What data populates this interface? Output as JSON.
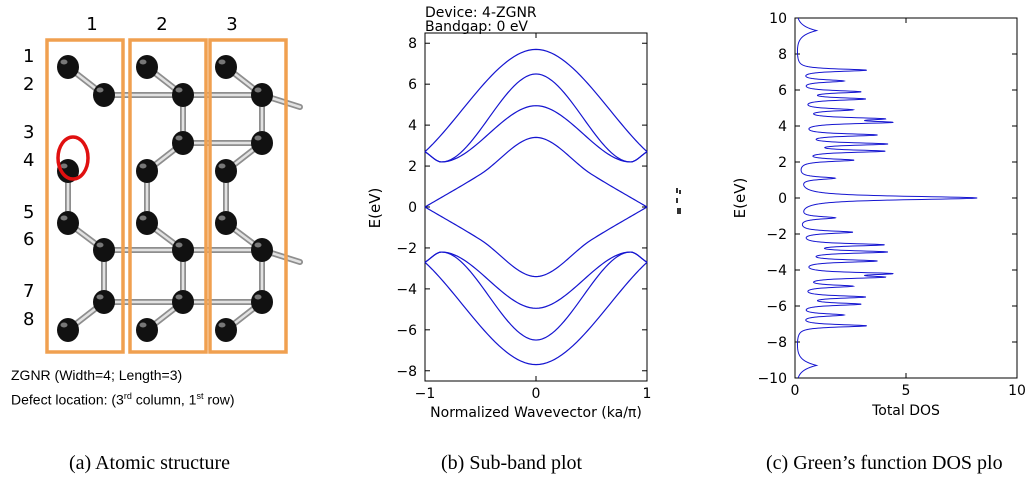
{
  "structure": {
    "column_labels": [
      "1",
      "2",
      "3"
    ],
    "row_labels": [
      "1",
      "2",
      "3",
      "4",
      "5",
      "6",
      "7",
      "8"
    ],
    "note": "ZGNR (Width=4; Length=3)",
    "defect_prefix": "Defect location: (3",
    "defect_col_sup": "rd",
    "defect_mid": " column, 1",
    "defect_row_sup": "st",
    "defect_suffix": " row)",
    "colors": {
      "box": "#f0a050",
      "atom": "#111111",
      "defect": "#e01010"
    }
  },
  "captions": {
    "a": "(a) Atomic structure",
    "b": "(b) Sub-band plot",
    "c": "(c) Green’s function DOS plo"
  },
  "chart_data": [
    {
      "type": "line",
      "title": "Device: 4-ZGNR",
      "subtitle": "Bandgap: 0 eV",
      "xlabel": "Normalized Wavevector (ka/π)",
      "ylabel": "E(eV)",
      "xlim": [
        -1,
        1
      ],
      "ylim": [
        -8.5,
        8.5
      ],
      "xticks": [
        -1,
        0,
        1
      ],
      "yticks": [
        -8,
        -6,
        -4,
        -2,
        0,
        2,
        4,
        6,
        8
      ],
      "grid": false,
      "line_color": "#1515d0",
      "series": [
        {
          "x": [
            -1,
            0,
            1
          ],
          "values": [
            2.7,
            7.7,
            2.7
          ]
        },
        {
          "x": [
            -1,
            -0.85,
            0,
            0.85,
            1
          ],
          "values": [
            2.7,
            2.2,
            6.5,
            2.2,
            2.7
          ]
        },
        {
          "x": [
            -1,
            -0.85,
            0,
            0.85,
            1
          ],
          "values": [
            2.7,
            2.2,
            4.95,
            2.2,
            2.7
          ]
        },
        {
          "x": [
            -1,
            -0.5,
            0,
            0.5,
            1
          ],
          "values": [
            0,
            1.6,
            3.4,
            1.6,
            0
          ]
        },
        {
          "x": [
            -1,
            -0.5,
            0,
            0.5,
            1
          ],
          "values": [
            0,
            -1.6,
            -3.4,
            -1.6,
            0
          ]
        },
        {
          "x": [
            -1,
            -0.85,
            0,
            0.85,
            1
          ],
          "values": [
            -2.7,
            -2.2,
            -4.95,
            -2.2,
            -2.7
          ]
        },
        {
          "x": [
            -1,
            -0.85,
            0,
            0.85,
            1
          ],
          "values": [
            -2.7,
            -2.2,
            -6.5,
            -2.2,
            -2.7
          ]
        },
        {
          "x": [
            -1,
            0,
            1
          ],
          "values": [
            -2.7,
            -7.7,
            -2.7
          ]
        }
      ]
    },
    {
      "type": "line",
      "xlabel": "Total DOS",
      "ylabel": "E(eV)",
      "xlim": [
        0,
        10
      ],
      "ylim": [
        -10,
        10
      ],
      "xticks": [
        0,
        5,
        10
      ],
      "yticks": [
        -10,
        -8,
        -6,
        -4,
        -2,
        0,
        2,
        4,
        6,
        8,
        10
      ],
      "grid": false,
      "line_color": "#1515d0",
      "peaks": [
        {
          "energy": 7.1,
          "dos": 3.1
        },
        {
          "energy": 6.5,
          "dos": 2.0
        },
        {
          "energy": 5.9,
          "dos": 2.7
        },
        {
          "energy": 5.5,
          "dos": 2.9
        },
        {
          "energy": 4.9,
          "dos": 2.3
        },
        {
          "energy": 4.4,
          "dos": 3.3
        },
        {
          "energy": 4.2,
          "dos": 3.7
        },
        {
          "energy": 3.5,
          "dos": 3.4
        },
        {
          "energy": 3.0,
          "dos": 3.8
        },
        {
          "energy": 2.6,
          "dos": 3.7
        },
        {
          "energy": 2.1,
          "dos": 2.4
        },
        {
          "energy": 1.1,
          "dos": 1.6
        },
        {
          "energy": 0.0,
          "dos": 8.1
        },
        {
          "energy": -1.1,
          "dos": 1.6
        },
        {
          "energy": -1.9,
          "dos": 2.4
        },
        {
          "energy": -2.6,
          "dos": 3.7
        },
        {
          "energy": -3.0,
          "dos": 3.8
        },
        {
          "energy": -3.5,
          "dos": 3.4
        },
        {
          "energy": -4.2,
          "dos": 3.7
        },
        {
          "energy": -4.4,
          "dos": 3.3
        },
        {
          "energy": -4.9,
          "dos": 2.3
        },
        {
          "energy": -5.5,
          "dos": 2.9
        },
        {
          "energy": -5.9,
          "dos": 2.7
        },
        {
          "energy": -6.5,
          "dos": 2.0
        },
        {
          "energy": -7.1,
          "dos": 3.1
        }
      ]
    }
  ]
}
